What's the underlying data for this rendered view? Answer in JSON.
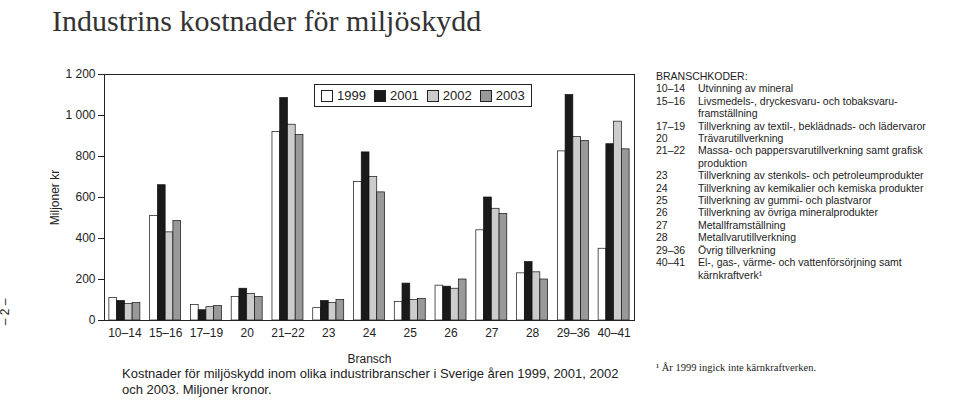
{
  "chart_data": {
    "type": "bar",
    "title": "Industrins kostnader för miljöskydd",
    "xlabel": "Bransch",
    "ylabel": "Miljoner kr",
    "categories": [
      "10–14",
      "15–16",
      "17–19",
      "20",
      "21–22",
      "23",
      "24",
      "25",
      "26",
      "27",
      "28",
      "29–36",
      "40–41"
    ],
    "series": [
      {
        "name": "1999",
        "color": "#ffffff",
        "values": [
          110,
          510,
          75,
          115,
          920,
          60,
          675,
          90,
          170,
          440,
          230,
          825,
          350
        ]
      },
      {
        "name": "2001",
        "color": "#1a1a1a",
        "values": [
          95,
          660,
          50,
          155,
          1085,
          95,
          820,
          180,
          165,
          600,
          285,
          1100,
          860
        ]
      },
      {
        "name": "2002",
        "color": "#cccccc",
        "values": [
          80,
          430,
          65,
          130,
          955,
          85,
          700,
          100,
          155,
          545,
          235,
          895,
          970
        ]
      },
      {
        "name": "2003",
        "color": "#999999",
        "values": [
          85,
          485,
          70,
          115,
          905,
          100,
          625,
          105,
          200,
          520,
          200,
          875,
          835
        ]
      }
    ],
    "ylim": [
      0,
      1200
    ],
    "yticks": [
      0,
      200,
      400,
      600,
      800,
      {
        "value": 1000,
        "label": "1 000"
      },
      {
        "value": 1200,
        "label": "1 200"
      }
    ],
    "legend": "top"
  },
  "page": {
    "page_number": "– 2 –",
    "code_title": "BRANSCHKODER:",
    "codes": [
      {
        "code": "10–14",
        "label": "Utvinning av mineral"
      },
      {
        "code": "15–16",
        "label": "Livsmedels-, dryckesvaru- och tobaksvaru-framställning"
      },
      {
        "code": "17–19",
        "label": "Tillverkning av textil-, beklädnads- och lädervaror"
      },
      {
        "code": "20",
        "label": "Trävarutillverkning"
      },
      {
        "code": "21–22",
        "label": "Massa- och pappersvarutillverkning samt grafisk produktion"
      },
      {
        "code": "23",
        "label": "Tillverkning av stenkols- och petroleumprodukter"
      },
      {
        "code": "24",
        "label": "Tillverkning av kemikalier och kemiska produkter"
      },
      {
        "code": "25",
        "label": "Tillverkning av gummi- och plastvaror"
      },
      {
        "code": "26",
        "label": "Tillverkning av övriga mineralprodukter"
      },
      {
        "code": "27",
        "label": "Metallframställning"
      },
      {
        "code": "28",
        "label": "Metallvarutillverkning"
      },
      {
        "code": "29–36",
        "label": "Övrig tillverkning"
      },
      {
        "code": "40–41",
        "label": "El-, gas-, värme- och vattenförsörjning samt kärnkraftverk¹"
      }
    ],
    "footnote": "¹ År 1999 ingick inte kärnkraftverken.",
    "caption": "Kostnader för miljöskydd inom olika industribranscher i Sverige åren 1999, 2001, 2002 och 2003. Miljoner kronor."
  }
}
